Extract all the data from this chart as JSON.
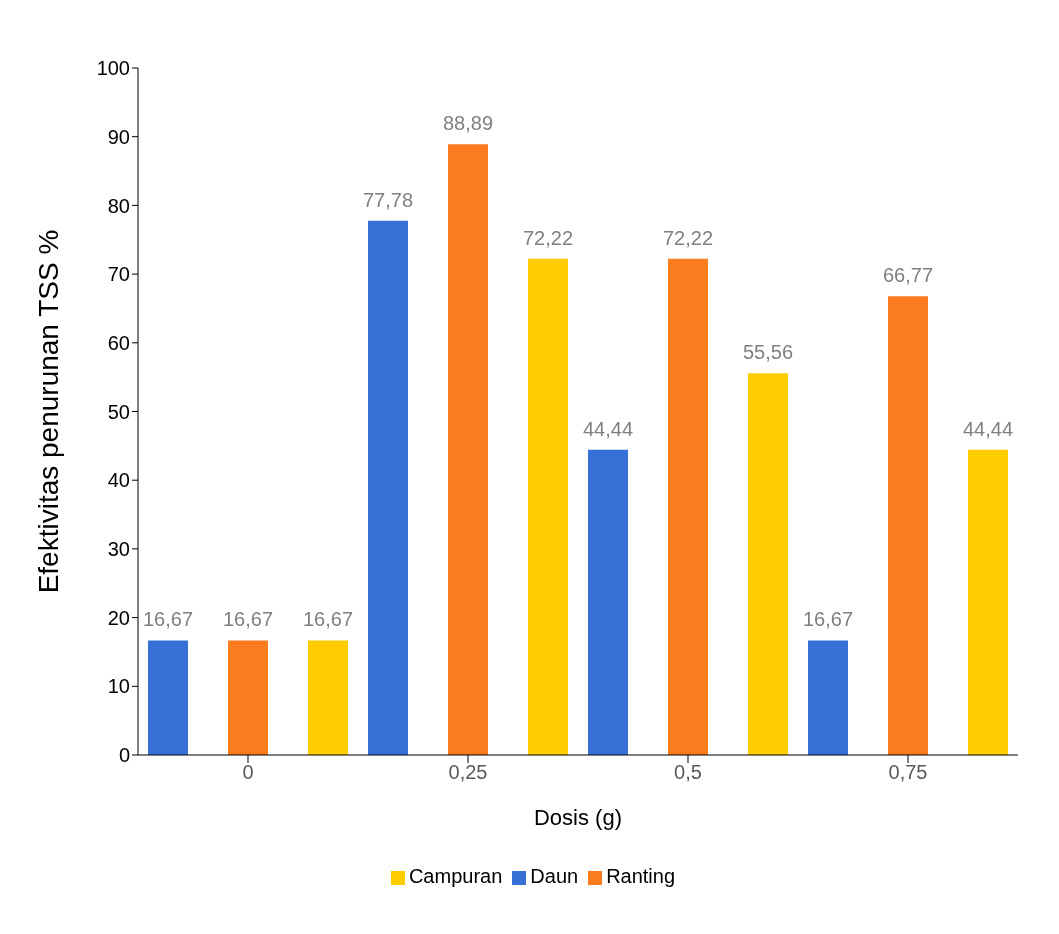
{
  "chart_data": {
    "type": "bar",
    "xlabel": "Dosis (g)",
    "ylabel": "Efektivitas penurunan  TSS %",
    "categories": [
      "0",
      "0,25",
      "0,5",
      "0,75"
    ],
    "series": [
      {
        "name": "Daun",
        "color": "#3670d6",
        "values": [
          16.67,
          77.78,
          44.44,
          16.67
        ],
        "value_labels": [
          "16,67",
          "77,78",
          "44,44",
          "16,67"
        ]
      },
      {
        "name": "Ranting",
        "color": "#fb7b1f",
        "values": [
          16.67,
          88.89,
          72.22,
          66.77
        ],
        "value_labels": [
          "16,67",
          "88,89",
          "72,22",
          "66,77"
        ]
      },
      {
        "name": "Campuran",
        "color": "#ffcc00",
        "values": [
          16.67,
          72.22,
          55.56,
          44.44
        ],
        "value_labels": [
          "16,67",
          "72,22",
          "55,56",
          "44,44"
        ]
      }
    ],
    "ylim": [
      0,
      100
    ],
    "yticks": [
      0,
      10,
      20,
      30,
      40,
      50,
      60,
      70,
      80,
      90,
      100
    ],
    "grid": false,
    "legend": "bottom"
  }
}
